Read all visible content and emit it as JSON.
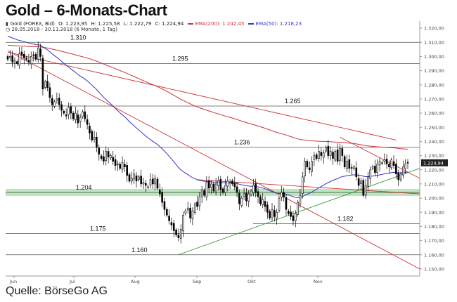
{
  "title": "Gold – 6-Monats-Chart",
  "info": {
    "instrument": "Gold (FOREX, Bid)",
    "open": "O: 1.223,95",
    "high": "H: 1.225,58",
    "low": "L: 1.222,79",
    "close": "C: 1.224,94",
    "ema200_label": "EMA(200): 1.242,45",
    "ema50_label": "EMA(50): 1.218,23",
    "daterange": "28.05.2018 - 30.11.2018 (6 Monate, 1 Tag)"
  },
  "source": "Quelle: BörseGo AG",
  "colors": {
    "candle": "#000000",
    "ema200": "#cc3333",
    "ema50": "#3333cc",
    "trend_red": "#cc3333",
    "trend_green": "#339933",
    "support_zone": "#88cc88",
    "grid": "#555555",
    "price_badge": "#222222"
  },
  "chart_data": {
    "type": "candlestick",
    "x_start": "2018-05-28",
    "x_end": "2018-11-30",
    "x_tick_labels": [
      "Jun",
      "Jul",
      "Aug",
      "Sep",
      "Okt",
      "Nov"
    ],
    "y_range": [
      1145,
      1325
    ],
    "y_tick_labels": [
      "1.320,00",
      "1.310,00",
      "1.300,00",
      "1.290,00",
      "1.280,00",
      "1.270,00",
      "1.260,00",
      "1.250,00",
      "1.240,00",
      "1.230,00",
      "1.220,00",
      "1.210,00",
      "1.200,00",
      "1.190,00",
      "1.180,00",
      "1.170,00",
      "1.160,00",
      "1.150,00"
    ],
    "y_tick_values": [
      1320,
      1310,
      1300,
      1290,
      1280,
      1270,
      1260,
      1250,
      1240,
      1230,
      1220,
      1210,
      1200,
      1190,
      1180,
      1170,
      1160,
      1150
    ],
    "current_price_label": "1.224,94",
    "current_price": 1224.94,
    "horizontal_levels": [
      {
        "value": 1310,
        "label": "1.310"
      },
      {
        "value": 1295,
        "label": "1.295"
      },
      {
        "value": 1265,
        "label": "1.265"
      },
      {
        "value": 1236,
        "label": "1.236"
      },
      {
        "value": 1204,
        "label": "1.204"
      },
      {
        "value": 1182,
        "label": "1.182"
      },
      {
        "value": 1175,
        "label": "1.175"
      },
      {
        "value": 1160,
        "label": "1.160"
      }
    ],
    "closes": [
      1298,
      1300,
      1296,
      1297,
      1295,
      1302,
      1301,
      1299,
      1298,
      1296,
      1300,
      1301,
      1298,
      1306,
      1300,
      1277,
      1282,
      1278,
      1271,
      1266,
      1268,
      1270,
      1266,
      1262,
      1260,
      1258,
      1264,
      1260,
      1256,
      1260,
      1253,
      1257,
      1261,
      1256,
      1252,
      1246,
      1241,
      1243,
      1236,
      1231,
      1228,
      1226,
      1233,
      1229,
      1230,
      1226,
      1223,
      1224,
      1221,
      1225,
      1222,
      1216,
      1212,
      1214,
      1217,
      1212,
      1215,
      1210,
      1211,
      1209,
      1208,
      1213,
      1210,
      1214,
      1207,
      1203,
      1197,
      1192,
      1188,
      1184,
      1181,
      1177,
      1174,
      1172,
      1178,
      1188,
      1191,
      1193,
      1186,
      1191,
      1196,
      1194,
      1201,
      1206,
      1202,
      1211,
      1207,
      1210,
      1205,
      1210,
      1212,
      1206,
      1204,
      1209,
      1212,
      1211,
      1210,
      1208,
      1204,
      1196,
      1200,
      1203,
      1198,
      1203,
      1205,
      1209,
      1204,
      1201,
      1196,
      1199,
      1194,
      1190,
      1186,
      1192,
      1187,
      1190,
      1200,
      1204,
      1201,
      1192,
      1189,
      1187,
      1184,
      1189,
      1197,
      1202,
      1215,
      1226,
      1222,
      1220,
      1226,
      1230,
      1228,
      1233,
      1230,
      1232,
      1236,
      1230,
      1233,
      1228,
      1233,
      1226,
      1235,
      1230,
      1222,
      1226,
      1221,
      1221,
      1222,
      1215,
      1209,
      1212,
      1202,
      1209,
      1215,
      1220,
      1222,
      1218,
      1224,
      1226,
      1225,
      1227,
      1224,
      1222,
      1227,
      1223,
      1217,
      1213,
      1217,
      1222,
      1224,
      1224.94
    ]
  }
}
